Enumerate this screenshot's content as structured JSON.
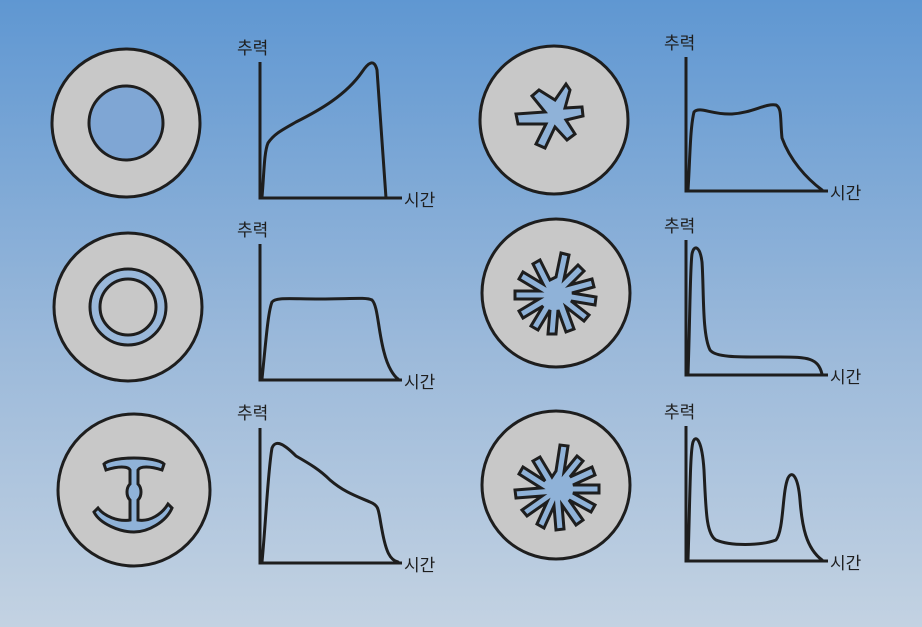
{
  "axis_labels": {
    "y": "추력",
    "x": "시간"
  },
  "colors": {
    "grain": "#c8c8c8",
    "outline": "#1e1e1e",
    "background_top": "#5f97d2",
    "background_bottom": "#c3d2e2"
  },
  "panels": [
    {
      "id": "tubular",
      "grain_shape": "circular-bore",
      "curve": "progressive"
    },
    {
      "id": "star",
      "grain_shape": "five-point-star",
      "curve": "neutral-hump"
    },
    {
      "id": "rod-and-tube",
      "grain_shape": "annular-ring",
      "curve": "neutral"
    },
    {
      "id": "wagon-wheel",
      "grain_shape": "slotted-wheel",
      "curve": "initial-spike"
    },
    {
      "id": "dendrite",
      "grain_shape": "anchor-slot",
      "curve": "regressive"
    },
    {
      "id": "dual-wheel",
      "grain_shape": "slotted-wheel",
      "curve": "dual-spike"
    }
  ]
}
